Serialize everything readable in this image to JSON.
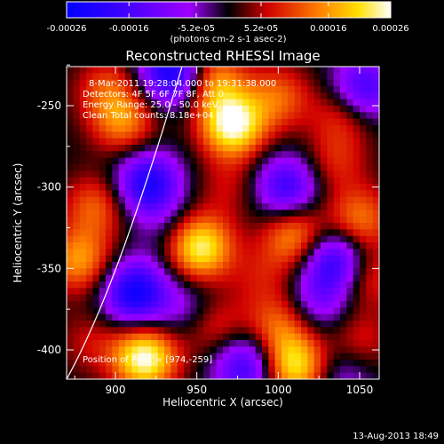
{
  "chart_data": {
    "type": "heatmap",
    "title": "Reconstructed RHESSI Image",
    "xlabel": "Heliocentric X (arcsec)",
    "ylabel": "Heliocentric Y (arcsec)",
    "xlim": [
      870,
      1062
    ],
    "ylim": [
      -418,
      -226
    ],
    "x_ticks": [
      900,
      950,
      1000,
      1050
    ],
    "y_ticks": [
      -250,
      -300,
      -350,
      -400
    ],
    "annotations": [
      "8-Mar-2011 19:28:04.000 to 19:31:38.000",
      "Detectors: 4F 5F 6F 7F 8F, Att 0",
      "Energy Range: 25.0 - 50.0 keV",
      "Clean    Total counts: 8.18e+04"
    ],
    "position_of_peak": "Position of Peak = [974,-259]",
    "peak": {
      "x": 974,
      "y": -259
    },
    "colorbar": {
      "range": [
        -0.00026,
        0.00026
      ],
      "tick_labels": [
        "-0.00026",
        "-0.00016",
        "-5.2e-05",
        "5.2e-05",
        "0.00016",
        "0.00026"
      ],
      "tick_values": [
        -0.00026,
        -0.00016,
        -5.2e-05,
        5.2e-05,
        0.00016,
        0.00026
      ],
      "units": "(photons cm-2 s-1 asec-2)"
    },
    "blobs": [
      {
        "x": 935,
        "y": -230,
        "v": -0.00024
      },
      {
        "x": 1052,
        "y": -240,
        "v": -0.00018
      },
      {
        "x": 895,
        "y": -240,
        "v": 0.0001
      },
      {
        "x": 905,
        "y": -260,
        "v": 0.00014
      },
      {
        "x": 972,
        "y": -262,
        "v": 0.00026
      },
      {
        "x": 960,
        "y": -235,
        "v": 0.00016
      },
      {
        "x": 1000,
        "y": -245,
        "v": 0.00012
      },
      {
        "x": 1040,
        "y": -255,
        "v": 0.0001
      },
      {
        "x": 1035,
        "y": -285,
        "v": 8e-05
      },
      {
        "x": 920,
        "y": -298,
        "v": -0.00022
      },
      {
        "x": 1005,
        "y": -300,
        "v": -0.00018
      },
      {
        "x": 888,
        "y": -312,
        "v": 0.00012
      },
      {
        "x": 970,
        "y": -300,
        "v": 6e-05
      },
      {
        "x": 1050,
        "y": -320,
        "v": 0.00014
      },
      {
        "x": 878,
        "y": -345,
        "v": 0.00016
      },
      {
        "x": 952,
        "y": -337,
        "v": 0.00024
      },
      {
        "x": 1010,
        "y": -330,
        "v": 0.00016
      },
      {
        "x": 1035,
        "y": -345,
        "v": -0.0002
      },
      {
        "x": 990,
        "y": -355,
        "v": 6e-05
      },
      {
        "x": 912,
        "y": -365,
        "v": -0.00024
      },
      {
        "x": 1055,
        "y": -355,
        "v": 0.0001
      },
      {
        "x": 945,
        "y": -375,
        "v": -8e-05
      },
      {
        "x": 960,
        "y": -385,
        "v": 0.0001
      },
      {
        "x": 1000,
        "y": -385,
        "v": 0.00012
      },
      {
        "x": 885,
        "y": -395,
        "v": 6e-05
      },
      {
        "x": 1050,
        "y": -395,
        "v": 8e-05
      },
      {
        "x": 918,
        "y": -405,
        "v": 0.00026
      },
      {
        "x": 980,
        "y": -410,
        "v": -0.00018
      },
      {
        "x": 1010,
        "y": -410,
        "v": 0.00022
      },
      {
        "x": 1040,
        "y": -415,
        "v": -8e-05
      },
      {
        "x": 930,
        "y": -325,
        "v": -4e-05
      },
      {
        "x": 1025,
        "y": -370,
        "v": -0.0001
      }
    ]
  },
  "footer": {
    "timestamp": "13-Aug-2013 18:49"
  }
}
